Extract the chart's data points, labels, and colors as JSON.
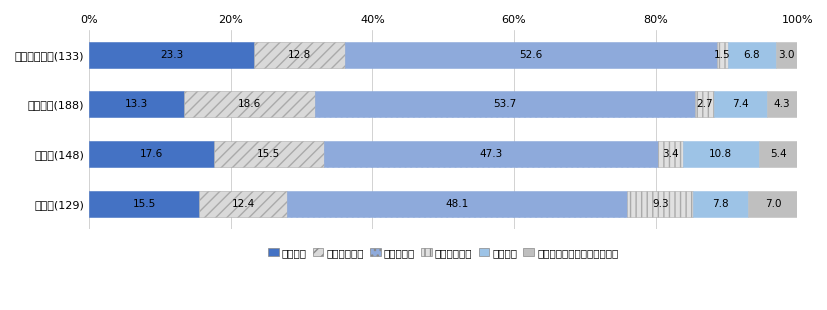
{
  "categories": [
    "殺人・傷害等(133)",
    "交通事故(188)",
    "性犯罪(148)",
    "その他(129)"
  ],
  "series": [
    {
      "label": "悪化した",
      "values": [
        23.3,
        13.3,
        17.6,
        15.5
      ],
      "color": "#4472C4",
      "hatch": "",
      "edgecolor": "#4472C4"
    },
    {
      "label": "やや悪化した",
      "values": [
        12.8,
        18.6,
        15.5,
        12.4
      ],
      "color": "#D9D9D9",
      "hatch": "///",
      "edgecolor": "#aaaaaa"
    },
    {
      "label": "変わらない",
      "values": [
        52.6,
        53.7,
        47.3,
        48.1
      ],
      "color": "#8EAADB",
      "hatch": "...",
      "edgecolor": "#8EAADB"
    },
    {
      "label": "少し回復した",
      "values": [
        1.5,
        2.7,
        3.4,
        9.3
      ],
      "color": "#E0E0E0",
      "hatch": "|||",
      "edgecolor": "#aaaaaa"
    },
    {
      "label": "回復した",
      "values": [
        6.8,
        7.4,
        10.8,
        7.8
      ],
      "color": "#9DC3E6",
      "hatch": "~~~",
      "edgecolor": "#9DC3E6"
    },
    {
      "label": "おぼえていない、わからない",
      "values": [
        3.0,
        4.3,
        5.4,
        7.0
      ],
      "color": "#BFBFBF",
      "hatch": "",
      "edgecolor": "#BFBFBF"
    }
  ],
  "xlim": [
    0,
    100
  ],
  "bar_height": 0.52,
  "figsize": [
    8.28,
    3.1
  ],
  "dpi": 100,
  "bg_color": "#FFFFFF",
  "grid_color": "#C0C0C0",
  "legend_fontsize": 7.5,
  "tick_fontsize": 8,
  "label_fontsize": 7.5
}
